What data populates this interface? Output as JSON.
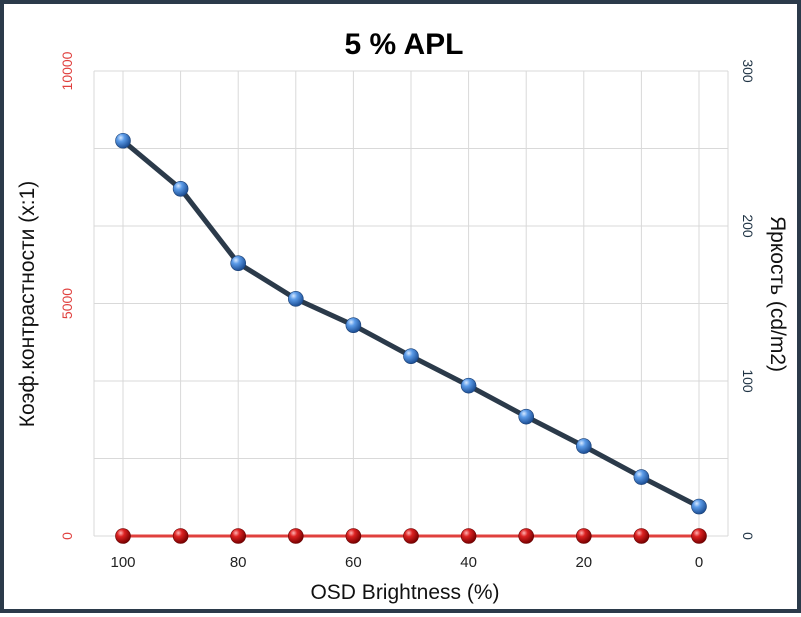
{
  "chart_data": {
    "type": "line",
    "title": "5 % APL",
    "xlabel": "OSD Brightness (%)",
    "ylabel_left": "Коэф.контрастности  (x:1)",
    "ylabel_right": "Яркость (cd/m2)",
    "x": [
      100,
      90,
      80,
      70,
      60,
      50,
      40,
      30,
      20,
      10,
      0
    ],
    "x_ticks": [
      "100",
      "80",
      "60",
      "40",
      "20",
      "0"
    ],
    "x_tick_values": [
      100,
      80,
      60,
      40,
      20,
      0
    ],
    "x_reversed": true,
    "xlim": [
      100,
      0
    ],
    "left_axis": {
      "ylim": [
        0,
        10000
      ],
      "ticks": [
        "0",
        "5000",
        "10000"
      ],
      "tick_values": [
        0,
        5000,
        10000
      ],
      "color": "#e0403e"
    },
    "right_axis": {
      "ylim": [
        0,
        300
      ],
      "ticks": [
        "0",
        "100",
        "200",
        "300"
      ],
      "tick_values": [
        0,
        100,
        200,
        300
      ],
      "color": "#1f3344"
    },
    "grid": true,
    "series": [
      {
        "axis": "left",
        "color": "#e0403e",
        "marker_color": "#cc1111",
        "values": [
          0,
          0,
          0,
          0,
          0,
          0,
          0,
          0,
          0,
          0,
          0
        ]
      },
      {
        "axis": "right",
        "color": "#2b3a4a",
        "marker_color": "#3d7fd1",
        "values": [
          255,
          224,
          176,
          153,
          136,
          116,
          97,
          77,
          58,
          38,
          19
        ]
      }
    ]
  }
}
